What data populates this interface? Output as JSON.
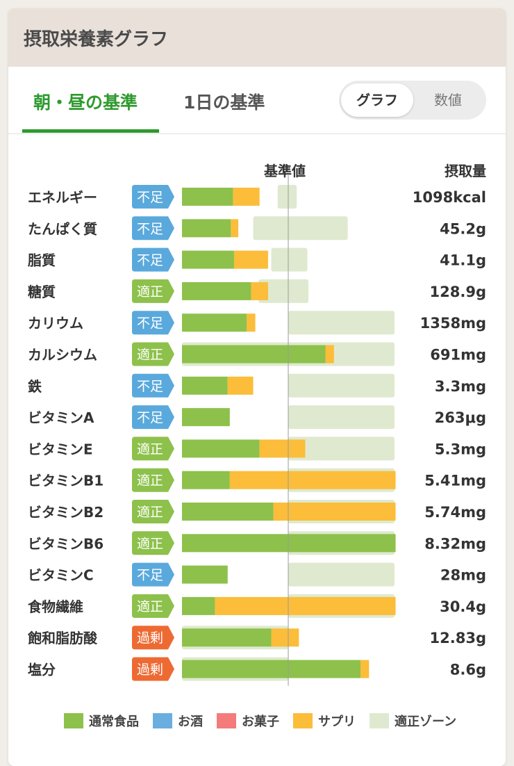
{
  "title": "摂取栄養素グラフ",
  "tabs": [
    {
      "label": "朝・昼の基準",
      "active": true
    },
    {
      "label": "1日の基準",
      "active": false
    }
  ],
  "toggle": {
    "options": [
      "グラフ",
      "数値"
    ],
    "selected": "グラフ"
  },
  "column_headers": {
    "base": "基準値",
    "intake": "摂取量"
  },
  "colors": {
    "normal_food": "#8dc14b",
    "alcohol": "#6aaee0",
    "snacks": "#f47b7b",
    "supplement": "#fbbd3a",
    "optimal_zone": "#dfe9cf",
    "status_low": "#5aa9dc",
    "status_ok": "#8dc14b",
    "status_over": "#ee6a33"
  },
  "legend": [
    {
      "label": "通常食品",
      "color": "#8dc14b"
    },
    {
      "label": "お酒",
      "color": "#6aaee0"
    },
    {
      "label": "お菓子",
      "color": "#f47b7b"
    },
    {
      "label": "サプリ",
      "color": "#fbbd3a"
    },
    {
      "label": "適正ゾーン",
      "color": "#dfe9cf"
    }
  ],
  "chart_data": {
    "type": "bar",
    "orientation": "horizontal",
    "stacked": true,
    "x_unit": "% of baseline",
    "xlim": [
      0,
      200
    ],
    "baseline": 100,
    "series_names": [
      "通常食品",
      "サプリ"
    ],
    "rows": [
      {
        "label": "エネルギー",
        "status": "不足",
        "status_type": "low",
        "food": 48,
        "supp": 25,
        "zone": [
          90,
          108
        ],
        "intake": "1098kcal"
      },
      {
        "label": "たんぱく質",
        "status": "不足",
        "status_type": "low",
        "food": 46,
        "supp": 7,
        "zone": [
          67,
          156
        ],
        "intake": "45.2g"
      },
      {
        "label": "脂質",
        "status": "不足",
        "status_type": "low",
        "food": 49,
        "supp": 32,
        "zone": [
          84,
          118
        ],
        "intake": "41.1g"
      },
      {
        "label": "糖質",
        "status": "適正",
        "status_type": "ok",
        "food": 65,
        "supp": 16,
        "zone": [
          72,
          119
        ],
        "intake": "128.9g"
      },
      {
        "label": "カリウム",
        "status": "不足",
        "status_type": "low",
        "food": 61,
        "supp": 8,
        "zone": [
          100,
          200
        ],
        "intake": "1358mg"
      },
      {
        "label": "カルシウム",
        "status": "適正",
        "status_type": "ok",
        "food": 135,
        "supp": 8,
        "zone": [
          0,
          200
        ],
        "intake": "691mg"
      },
      {
        "label": "鉄",
        "status": "不足",
        "status_type": "low",
        "food": 43,
        "supp": 24,
        "zone": [
          100,
          200
        ],
        "intake": "3.3mg"
      },
      {
        "label": "ビタミンA",
        "status": "不足",
        "status_type": "low",
        "food": 45,
        "supp": 0,
        "zone": [
          100,
          200
        ],
        "intake": "263μg"
      },
      {
        "label": "ビタミンE",
        "status": "適正",
        "status_type": "ok",
        "food": 73,
        "supp": 43,
        "zone": [
          100,
          200
        ],
        "intake": "5.3mg"
      },
      {
        "label": "ビタミンB1",
        "status": "適正",
        "status_type": "ok",
        "food": 45,
        "supp": 156,
        "zone": [
          100,
          200
        ],
        "intake": "5.41mg"
      },
      {
        "label": "ビタミンB2",
        "status": "適正",
        "status_type": "ok",
        "food": 86,
        "supp": 115,
        "zone": [
          100,
          200
        ],
        "intake": "5.74mg"
      },
      {
        "label": "ビタミンB6",
        "status": "適正",
        "status_type": "ok",
        "food": 201,
        "supp": 0,
        "zone": [
          100,
          200
        ],
        "intake": "8.32mg"
      },
      {
        "label": "ビタミンC",
        "status": "不足",
        "status_type": "low",
        "food": 43,
        "supp": 0,
        "zone": [
          100,
          200
        ],
        "intake": "28mg"
      },
      {
        "label": "食物繊維",
        "status": "適正",
        "status_type": "ok",
        "food": 31,
        "supp": 170,
        "zone": [
          100,
          200
        ],
        "intake": "30.4g"
      },
      {
        "label": "飽和脂肪酸",
        "status": "過剰",
        "status_type": "over",
        "food": 84,
        "supp": 26,
        "zone": [
          0,
          100
        ],
        "intake": "12.83g"
      },
      {
        "label": "塩分",
        "status": "過剰",
        "status_type": "over",
        "food": 168,
        "supp": 8,
        "zone": [
          0,
          100
        ],
        "intake": "8.6g"
      }
    ]
  }
}
